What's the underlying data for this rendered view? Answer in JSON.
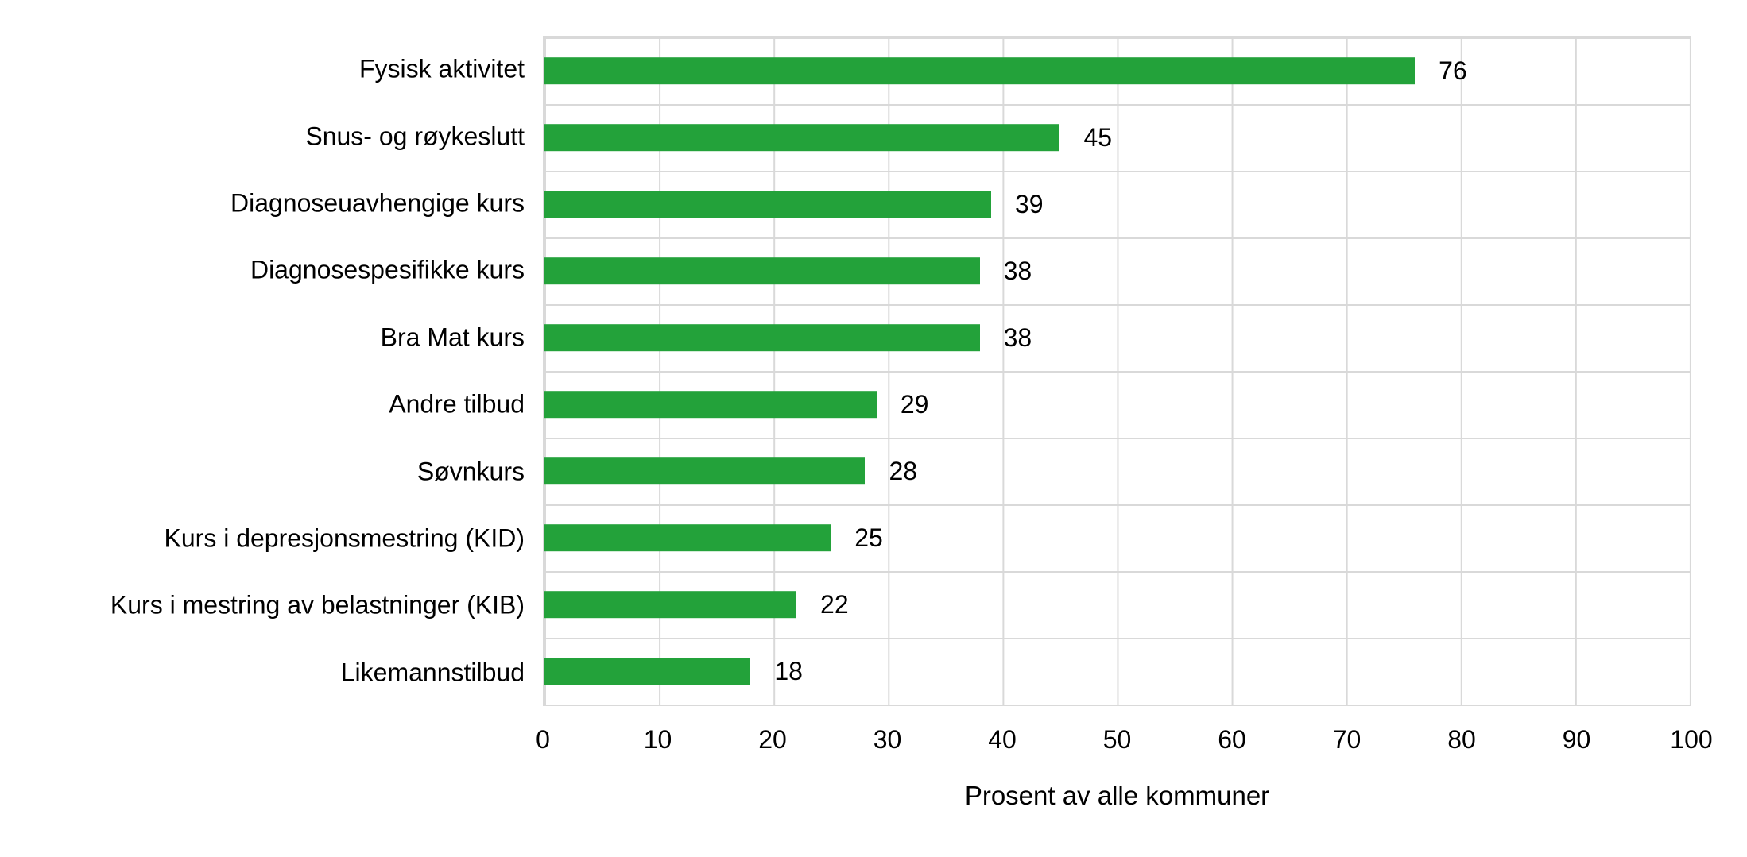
{
  "chart_data": {
    "type": "bar",
    "orientation": "horizontal",
    "title": "",
    "categories": [
      "Fysisk aktivitet",
      "Snus- og røykeslutt",
      "Diagnoseuavhengige kurs",
      "Diagnosespesifikke kurs",
      "Bra Mat kurs",
      "Andre tilbud",
      "Søvnkurs",
      "Kurs i depresjonsmestring (KID)",
      "Kurs i mestring av belastninger (KIB)",
      "Likemannstilbud"
    ],
    "values": [
      76,
      45,
      39,
      38,
      38,
      29,
      28,
      25,
      22,
      18
    ],
    "value_labels": [
      "76",
      "45",
      "39",
      "38",
      "38",
      "29",
      "28",
      "25",
      "22",
      "18"
    ],
    "xlabel": "Prosent av alle kommuner",
    "ylabel": "",
    "xlim": [
      0,
      100
    ],
    "xticks": [
      "0",
      "10",
      "20",
      "30",
      "40",
      "50",
      "60",
      "70",
      "80",
      "90",
      "100"
    ],
    "grid": "both-major",
    "legend": "none",
    "colors": {
      "bar": "#23a23a",
      "gridline": "#d9d9d9",
      "text": "#000000",
      "background": "#ffffff"
    }
  }
}
